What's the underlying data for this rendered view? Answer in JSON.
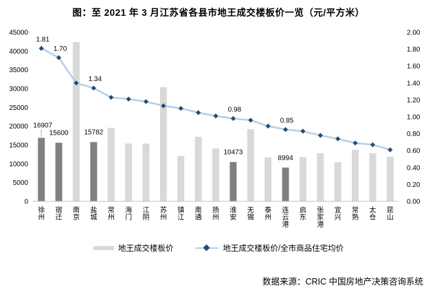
{
  "page": {
    "title": "图：至 2021 年 3 月江苏省各县市地王成交楼板价一览（元/平方米）",
    "source": "数据来源：CRIC 中国房地产决策咨询系统"
  },
  "legend": {
    "bar_label": "地王成交楼板价",
    "line_label": "地王成交楼板价/全市商品住宅均价"
  },
  "chart_data": {
    "type": "bar",
    "subtype": "bar-line-combo",
    "title": "图：至 2021 年 3 月江苏省各县市地王成交楼板价一览（元/平方米）",
    "categories": [
      "徐州",
      "宿迁",
      "南京",
      "盐城",
      "常州",
      "海门",
      "江阴",
      "苏州",
      "镇江",
      "南通",
      "扬州",
      "淮安",
      "无锡",
      "泰州",
      "连云港",
      "启东",
      "张家港",
      "宜兴",
      "常熟",
      "太仓",
      "昆山"
    ],
    "series": [
      {
        "name": "地王成交楼板价",
        "type": "bar",
        "axis": "left",
        "values": [
          16907,
          15600,
          42400,
          15782,
          19600,
          15400,
          15400,
          30400,
          12100,
          17200,
          14100,
          10473,
          19200,
          11700,
          8994,
          11800,
          12800,
          10400,
          13700,
          12800,
          11900
        ]
      },
      {
        "name": "地王成交楼板价/全市商品住宅均价",
        "type": "line",
        "axis": "right",
        "values": [
          1.81,
          1.7,
          1.4,
          1.34,
          1.23,
          1.21,
          1.18,
          1.13,
          1.1,
          1.05,
          1.01,
          0.98,
          0.96,
          0.89,
          0.85,
          0.83,
          0.78,
          0.74,
          0.69,
          0.67,
          0.61
        ]
      }
    ],
    "highlighted_category_indices": [
      0,
      1,
      3,
      11,
      14
    ],
    "bar_value_labels": [
      {
        "index": 0,
        "text": "16907",
        "leader": true
      },
      {
        "index": 1,
        "text": "15600"
      },
      {
        "index": 3,
        "text": "15782"
      },
      {
        "index": 11,
        "text": "10473"
      },
      {
        "index": 14,
        "text": "8994"
      }
    ],
    "line_value_labels": [
      {
        "index": 0,
        "text": "1.81"
      },
      {
        "index": 1,
        "text": "1.70"
      },
      {
        "index": 3,
        "text": "1.34"
      },
      {
        "index": 11,
        "text": "0.98"
      },
      {
        "index": 14,
        "text": "0.85"
      }
    ],
    "left_axis": {
      "min": 0,
      "max": 45000,
      "step": 5000
    },
    "right_axis": {
      "min": 0,
      "max": 2,
      "step": 0.2,
      "decimals": 2
    },
    "grid": false,
    "legend_position": "bottom",
    "colors": {
      "bar_light": "#D9D9D9",
      "bar_dark": "#808080",
      "line": "#B9CDE4",
      "marker": "#1F4E79",
      "axis_line": "#C0C0C0",
      "leader_line": "#A6A6A6",
      "text": "#000000"
    }
  }
}
